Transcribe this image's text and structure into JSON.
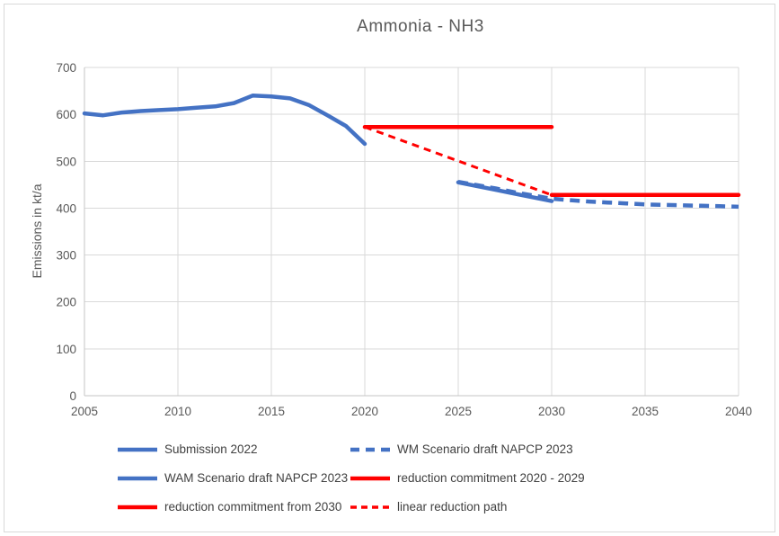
{
  "frame": {
    "background": "#ffffff",
    "border_color": "#d9d9d9"
  },
  "colors": {
    "series_blue": "#4472C4",
    "series_red": "#FF0000",
    "gridline": "#d9d9d9",
    "axis_line": "#c6c6c6",
    "tick_text": "#595959",
    "title_text": "#595959",
    "legend_text": "#404040"
  },
  "chart_data": {
    "type": "line",
    "title": "Ammonia - NH3",
    "xlabel": "",
    "ylabel": "Emissions in kt/a",
    "xlim": [
      2005,
      2040
    ],
    "ylim": [
      0,
      700
    ],
    "x_ticks": [
      "2005",
      "2010",
      "2015",
      "2020",
      "2025",
      "2030",
      "2035",
      "2040"
    ],
    "x_tick_values": [
      2005,
      2010,
      2015,
      2020,
      2025,
      2030,
      2035,
      2040
    ],
    "y_ticks": [
      "0",
      "100",
      "200",
      "300",
      "400",
      "500",
      "600",
      "700"
    ],
    "y_tick_values": [
      0,
      100,
      200,
      300,
      400,
      500,
      600,
      700
    ],
    "grid": true,
    "legend_position": "bottom",
    "series": [
      {
        "name": "Submission 2022",
        "color": "#4472C4",
        "style": "solid",
        "width": 4.5,
        "x": [
          2005,
          2006,
          2007,
          2008,
          2009,
          2010,
          2011,
          2012,
          2013,
          2014,
          2015,
          2016,
          2017,
          2018,
          2019,
          2020
        ],
        "values": [
          602,
          598,
          604,
          607,
          609,
          611,
          614,
          617,
          624,
          640,
          638,
          634,
          620,
          598,
          575,
          537
        ]
      },
      {
        "name": "linear reduction path",
        "color": "#FF0000",
        "style": "dashed",
        "width": 3,
        "x": [
          2020,
          2030
        ],
        "values": [
          573,
          428
        ]
      },
      {
        "name": "WAM Scenario draft NAPCP 2023",
        "color": "#4472C4",
        "style": "solid",
        "width": 4.5,
        "x": [
          2025,
          2026,
          2027,
          2028,
          2029,
          2030
        ],
        "values": [
          455,
          447,
          439,
          431,
          423,
          415
        ]
      },
      {
        "name": "WM Scenario draft NAPCP 2023",
        "color": "#4472C4",
        "style": "dashed",
        "width": 4.5,
        "x": [
          2025,
          2026,
          2027,
          2028,
          2029,
          2030,
          2031,
          2032,
          2033,
          2034,
          2035,
          2036,
          2037,
          2038,
          2039,
          2040
        ],
        "values": [
          456,
          449,
          442,
          434,
          427,
          420,
          417,
          414,
          412,
          410,
          408,
          407,
          406,
          405,
          404,
          403
        ]
      },
      {
        "name": "reduction commitment 2020 - 2029",
        "color": "#FF0000",
        "style": "solid",
        "width": 4.5,
        "x": [
          2020,
          2030
        ],
        "values": [
          573,
          573
        ]
      },
      {
        "name": "reduction commitment from 2030",
        "color": "#FF0000",
        "style": "solid",
        "width": 4.5,
        "x": [
          2030,
          2040
        ],
        "values": [
          428,
          428
        ]
      }
    ],
    "legend": [
      {
        "label": "Submission 2022",
        "series": 0,
        "col": 0,
        "row": 0
      },
      {
        "label": "WM Scenario draft NAPCP 2023",
        "series": 3,
        "col": 1,
        "row": 0
      },
      {
        "label": "WAM Scenario draft NAPCP 2023",
        "series": 2,
        "col": 0,
        "row": 1
      },
      {
        "label": "reduction commitment 2020 - 2029",
        "series": 4,
        "col": 1,
        "row": 1
      },
      {
        "label": "reduction commitment from 2030",
        "series": 5,
        "col": 0,
        "row": 2
      },
      {
        "label": "linear reduction path",
        "series": 1,
        "col": 1,
        "row": 2
      }
    ]
  }
}
